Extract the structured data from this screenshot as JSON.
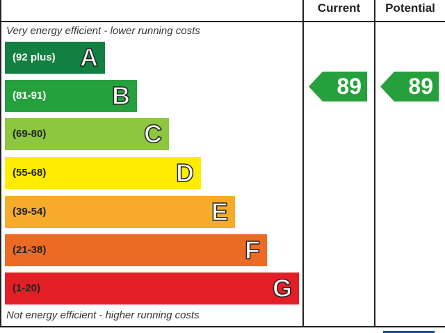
{
  "chart_data": {
    "type": "bar",
    "headers": {
      "current": "Current",
      "potential": "Potential"
    },
    "top_note": "Very energy efficient - lower running costs",
    "bottom_note": "Not energy efficient - higher running costs",
    "bands": [
      {
        "letter": "A",
        "range": "(92 plus)",
        "color": "#128040",
        "text_color": "#ffffff"
      },
      {
        "letter": "B",
        "range": "(81-91)",
        "color": "#26a03c",
        "text_color": "#ffffff"
      },
      {
        "letter": "C",
        "range": "(69-80)",
        "color": "#8dc63f",
        "text_color": "#222222"
      },
      {
        "letter": "D",
        "range": "(55-68)",
        "color": "#ffec00",
        "text_color": "#222222"
      },
      {
        "letter": "E",
        "range": "(39-54)",
        "color": "#f6ab2b",
        "text_color": "#222222"
      },
      {
        "letter": "F",
        "range": "(21-38)",
        "color": "#ec6b24",
        "text_color": "#222222"
      },
      {
        "letter": "G",
        "range": "(1-20)",
        "color": "#e21f26",
        "text_color": "#222222"
      }
    ],
    "current": {
      "value": "89",
      "band": "B",
      "color": "#26a03c"
    },
    "potential": {
      "value": "89",
      "band": "B",
      "color": "#26a03c"
    }
  }
}
